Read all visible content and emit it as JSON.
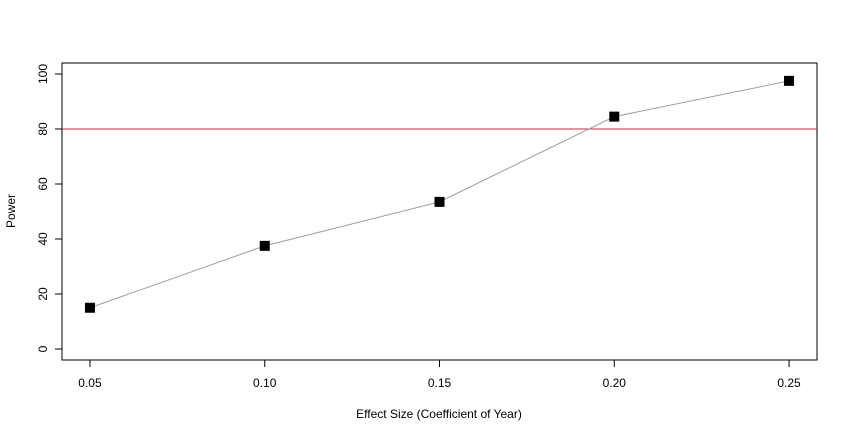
{
  "chart_data": {
    "type": "line",
    "title": "",
    "xlabel": "Effect Size (Coefficient of Year)",
    "ylabel": "Power",
    "x": [
      0.05,
      0.1,
      0.15,
      0.2,
      0.25
    ],
    "x_tick_labels": [
      "0.05",
      "0.10",
      "0.15",
      "0.20",
      "0.25"
    ],
    "y_ticks": [
      0,
      20,
      40,
      60,
      80,
      100
    ],
    "y_tick_labels": [
      "0",
      "20",
      "40",
      "60",
      "80",
      "100"
    ],
    "series": [
      {
        "values": [
          15,
          37.5,
          53.5,
          84.5,
          97.5
        ],
        "color": "#9e9e9e",
        "marker": "filled-square",
        "marker_color": "#000000"
      }
    ],
    "reference_line": {
      "y": 80,
      "color": "#c0304a"
    },
    "xlim": [
      0.042,
      0.258
    ],
    "ylim": [
      -4,
      104
    ],
    "grid": false,
    "legend": "none"
  }
}
